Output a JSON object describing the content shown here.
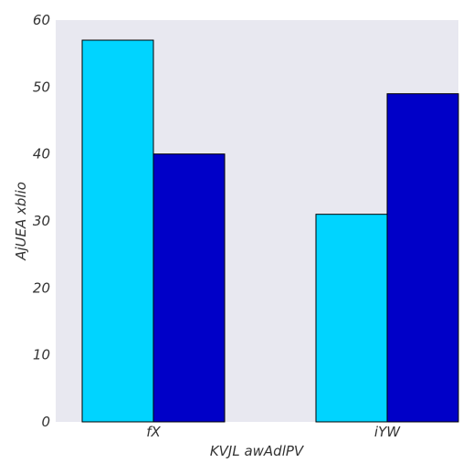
{
  "chart_data": {
    "type": "bar",
    "categories": [
      "fX",
      "iYW"
    ],
    "series": [
      {
        "values": [
          57,
          40
        ],
        "color": "#00d4ff"
      },
      {
        "values": [
          31,
          49
        ],
        "color": "#0000c8"
      }
    ],
    "series_by_category_note_removed": null,
    "xlabel": "KVJL awAdlPV",
    "ylabel": "AjUEA xblio",
    "ylim": [
      0,
      60
    ],
    "yticks": [
      "0",
      "10",
      "20",
      "30",
      "40",
      "50",
      "60"
    ],
    "grid": false,
    "plot_background": "#e8e8f0"
  }
}
